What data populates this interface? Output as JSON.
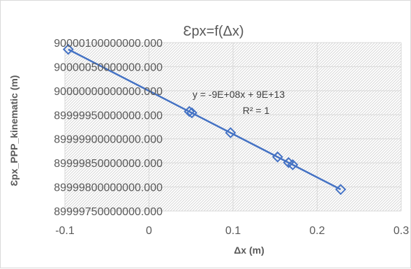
{
  "chart_data": {
    "type": "scatter",
    "title": "Ɛpx=f(Δx)",
    "xlabel": "Δx (m)",
    "ylabel": "Ɛpx_PPP_kinematic (m)",
    "xlim": [
      -0.1,
      0.3
    ],
    "ylim": [
      89999750000000,
      90000100000000
    ],
    "x_ticks": [
      -0.1,
      0,
      0.1,
      0.2,
      0.3
    ],
    "x_tick_labels": [
      "-0.1",
      "0",
      "0.1",
      "0.2",
      "0.3"
    ],
    "y_ticks": [
      89999750000000,
      89999800000000,
      89999850000000,
      89999900000000,
      89999950000000,
      90000000000000,
      90000050000000,
      90000100000000
    ],
    "y_tick_labels": [
      "89999750000000.000",
      "89999800000000.000",
      "89999850000000.000",
      "89999900000000.000",
      "89999950000000.000",
      "90000000000000.000",
      "90000050000000.000",
      "90000100000000.000"
    ],
    "series": [
      {
        "x": [
          -0.096,
          0.048,
          0.051,
          0.097,
          0.153,
          0.166,
          0.171,
          0.228
        ],
        "y": [
          90000086000000,
          89999956800000,
          89999954100000,
          89999912700000,
          89999862300000,
          89999850600000,
          89999846100000,
          89999794800000
        ],
        "color": "#4472c4",
        "marker": "diamond"
      }
    ],
    "trendline": {
      "equation": "y = -9E+08x + 9E+13",
      "r2": "R² = 1",
      "slope": -900000000,
      "intercept": 90000000000000
    },
    "plot_fill": "diagonal-hatch",
    "grid": true,
    "legend": "none"
  }
}
